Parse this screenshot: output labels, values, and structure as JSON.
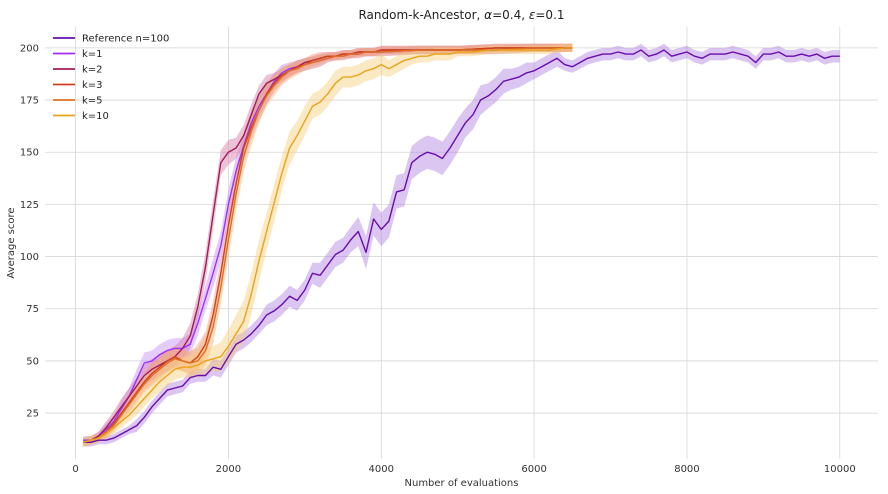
{
  "chart_data": {
    "type": "line",
    "title_parts": [
      "Random-k-Ancestor, ",
      "α",
      "=0.4, ",
      "ε",
      "=0.1"
    ],
    "xlabel": "Number of evaluations",
    "ylabel": "Average score",
    "xlim": [
      -400,
      10500
    ],
    "ylim": [
      3,
      210
    ],
    "xticks": [
      0,
      2000,
      4000,
      6000,
      8000,
      10000
    ],
    "yticks": [
      25,
      50,
      75,
      100,
      125,
      150,
      175,
      200
    ],
    "grid": true,
    "legend_position": "top-left",
    "series": [
      {
        "name": "Reference n=100",
        "color": "#6a0dad",
        "band_color": "#b07fe0",
        "x": [
          100,
          200,
          300,
          400,
          500,
          600,
          700,
          800,
          900,
          1000,
          1100,
          1200,
          1300,
          1400,
          1500,
          1600,
          1700,
          1800,
          1900,
          2000,
          2100,
          2200,
          2300,
          2400,
          2500,
          2600,
          2700,
          2800,
          2900,
          3000,
          3100,
          3200,
          3300,
          3400,
          3500,
          3600,
          3700,
          3800,
          3900,
          4000,
          4100,
          4200,
          4300,
          4400,
          4500,
          4600,
          4700,
          4800,
          4900,
          5000,
          5100,
          5200,
          5300,
          5400,
          5500,
          5600,
          5700,
          5800,
          5900,
          6000,
          6100,
          6200,
          6300,
          6400,
          6500,
          6600,
          6700,
          6800,
          6900,
          7000,
          7100,
          7200,
          7300,
          7400,
          7500,
          7600,
          7700,
          7800,
          7900,
          8000,
          8100,
          8200,
          8300,
          8400,
          8500,
          8600,
          8700,
          8800,
          8900,
          9000,
          9100,
          9200,
          9300,
          9400,
          9500,
          9600,
          9700,
          9800,
          9900,
          10000
        ],
        "y": [
          11,
          11,
          12,
          12,
          13,
          15,
          17,
          19,
          23,
          28,
          32,
          36,
          37,
          38,
          42,
          43,
          43,
          47,
          46,
          52,
          58,
          60,
          63,
          67,
          72,
          74,
          77,
          81,
          79,
          84,
          92,
          91,
          96,
          101,
          103,
          108,
          112,
          102,
          118,
          113,
          117,
          131,
          132,
          145,
          148,
          150,
          149,
          147,
          152,
          158,
          164,
          168,
          175,
          177,
          180,
          184,
          185,
          186,
          188,
          189,
          191,
          193,
          195,
          192,
          191,
          193,
          195,
          196,
          197,
          197,
          198,
          197,
          197,
          199,
          196,
          197,
          199,
          196,
          197,
          198,
          196,
          195,
          197,
          197,
          197,
          198,
          197,
          196,
          193,
          197,
          197,
          198,
          196,
          196,
          197,
          196,
          197,
          195,
          196,
          196
        ],
        "band": [
          2,
          2,
          2,
          2,
          2,
          2,
          2,
          3,
          3,
          3,
          3,
          3,
          3,
          3,
          3,
          3,
          3,
          4,
          4,
          4,
          4,
          4,
          4,
          4,
          5,
          5,
          5,
          5,
          5,
          5,
          5,
          6,
          6,
          6,
          6,
          6,
          7,
          8,
          8,
          8,
          8,
          8,
          8,
          8,
          8,
          8,
          8,
          8,
          8,
          8,
          7,
          7,
          7,
          6,
          6,
          6,
          5,
          5,
          5,
          4,
          4,
          4,
          4,
          3,
          3,
          3,
          3,
          3,
          3,
          3,
          3,
          3,
          3,
          3,
          3,
          3,
          3,
          3,
          3,
          3,
          3,
          3,
          3,
          3,
          3,
          3,
          3,
          3,
          3,
          3,
          3,
          3,
          3,
          3,
          3,
          3,
          3,
          3,
          3,
          3
        ]
      },
      {
        "name": "k=1",
        "color": "#9b30ff",
        "band_color": "#c58fff",
        "x": [
          100,
          200,
          300,
          400,
          500,
          600,
          700,
          800,
          900,
          1000,
          1100,
          1200,
          1300,
          1400,
          1500,
          1600,
          1700,
          1800,
          1900,
          2000,
          2100,
          2200,
          2300,
          2400,
          2500,
          2600,
          2700,
          2800,
          2900,
          3000,
          3100,
          3200,
          3300,
          3400,
          3500,
          3600,
          3700,
          3800,
          3900,
          4000,
          4500,
          5000,
          5500,
          6000,
          6500
        ],
        "y": [
          12,
          12,
          14,
          17,
          21,
          27,
          33,
          41,
          49,
          50,
          53,
          55,
          56,
          56,
          58,
          68,
          80,
          92,
          105,
          125,
          141,
          153,
          164,
          172,
          178,
          184,
          188,
          190,
          191,
          192,
          193,
          194,
          195,
          196,
          196,
          197,
          197,
          198,
          198,
          198,
          199,
          199,
          199,
          200,
          200
        ],
        "band": [
          2,
          2,
          2,
          3,
          3,
          4,
          4,
          5,
          5,
          5,
          5,
          5,
          5,
          5,
          5,
          6,
          6,
          7,
          7,
          7,
          7,
          6,
          6,
          5,
          5,
          4,
          4,
          3,
          3,
          3,
          3,
          3,
          2,
          2,
          2,
          2,
          2,
          2,
          2,
          2,
          2,
          2,
          2,
          2,
          2
        ]
      },
      {
        "name": "k=2",
        "color": "#a21c5a",
        "band_color": "#d47aa3",
        "x": [
          100,
          200,
          300,
          400,
          500,
          600,
          700,
          800,
          900,
          1000,
          1100,
          1200,
          1300,
          1400,
          1500,
          1600,
          1700,
          1800,
          1900,
          2000,
          2100,
          2200,
          2300,
          2400,
          2500,
          2600,
          2700,
          2800,
          2900,
          3000,
          3100,
          3200,
          3300,
          3400,
          3500,
          3600,
          3700,
          3800,
          3900,
          4000,
          4500,
          5000,
          5500,
          6000,
          6500
        ],
        "y": [
          11,
          12,
          14,
          18,
          23,
          28,
          33,
          38,
          43,
          46,
          48,
          50,
          52,
          56,
          62,
          76,
          95,
          120,
          145,
          150,
          152,
          158,
          168,
          178,
          183,
          185,
          187,
          189,
          191,
          193,
          194,
          195,
          196,
          196,
          197,
          197,
          198,
          198,
          198,
          199,
          199,
          199,
          200,
          200,
          200
        ],
        "band": [
          2,
          2,
          2,
          3,
          3,
          4,
          4,
          4,
          5,
          5,
          5,
          5,
          5,
          5,
          6,
          6,
          7,
          7,
          6,
          6,
          5,
          5,
          5,
          4,
          4,
          3,
          3,
          3,
          3,
          2,
          2,
          2,
          2,
          2,
          2,
          2,
          2,
          2,
          2,
          2,
          2,
          2,
          2,
          2,
          2
        ]
      },
      {
        "name": "k=3",
        "color": "#d0401c",
        "band_color": "#f09a7e",
        "x": [
          100,
          200,
          300,
          400,
          500,
          600,
          700,
          800,
          900,
          1000,
          1100,
          1200,
          1300,
          1400,
          1500,
          1600,
          1700,
          1800,
          1900,
          2000,
          2100,
          2200,
          2300,
          2400,
          2500,
          2600,
          2700,
          2800,
          2900,
          3000,
          3100,
          3200,
          3300,
          3400,
          3500,
          3600,
          3700,
          3800,
          3900,
          4000,
          4500,
          5000,
          5500,
          6000,
          6500
        ],
        "y": [
          11,
          12,
          13,
          16,
          20,
          25,
          30,
          35,
          40,
          44,
          47,
          50,
          52,
          50,
          49,
          52,
          58,
          72,
          92,
          115,
          135,
          152,
          162,
          170,
          178,
          183,
          187,
          189,
          191,
          192,
          194,
          195,
          196,
          196,
          197,
          197,
          198,
          198,
          198,
          199,
          199,
          199,
          200,
          200,
          200
        ],
        "band": [
          2,
          2,
          2,
          3,
          3,
          3,
          4,
          4,
          4,
          5,
          5,
          5,
          5,
          5,
          5,
          6,
          6,
          7,
          7,
          7,
          7,
          6,
          6,
          5,
          5,
          4,
          4,
          3,
          3,
          3,
          3,
          3,
          2,
          2,
          2,
          2,
          2,
          2,
          2,
          2,
          2,
          2,
          2,
          2,
          2
        ]
      },
      {
        "name": "k=5",
        "color": "#e07020",
        "band_color": "#f4b07a",
        "x": [
          100,
          200,
          300,
          400,
          500,
          600,
          700,
          800,
          900,
          1000,
          1100,
          1200,
          1300,
          1400,
          1500,
          1600,
          1700,
          1800,
          1900,
          2000,
          2100,
          2200,
          2300,
          2400,
          2500,
          2600,
          2700,
          2800,
          2900,
          3000,
          3100,
          3200,
          3300,
          3400,
          3500,
          3600,
          3700,
          3800,
          3900,
          4000,
          4500,
          5000,
          5500,
          6000,
          6500
        ],
        "y": [
          11,
          12,
          13,
          16,
          19,
          24,
          29,
          34,
          39,
          43,
          46,
          49,
          51,
          50,
          49,
          50,
          55,
          66,
          85,
          108,
          130,
          148,
          160,
          170,
          177,
          182,
          186,
          189,
          190,
          192,
          193,
          194,
          195,
          196,
          196,
          197,
          197,
          198,
          198,
          198,
          199,
          199,
          199,
          200,
          200
        ],
        "band": [
          2,
          2,
          2,
          3,
          3,
          3,
          4,
          4,
          4,
          5,
          5,
          5,
          5,
          5,
          6,
          6,
          7,
          8,
          8,
          8,
          8,
          7,
          7,
          6,
          5,
          5,
          4,
          4,
          3,
          3,
          3,
          3,
          2,
          2,
          2,
          2,
          2,
          2,
          2,
          2,
          2,
          2,
          2,
          2,
          2
        ]
      },
      {
        "name": "k=10",
        "color": "#eaa21a",
        "band_color": "#f7cf7a",
        "x": [
          100,
          200,
          300,
          400,
          500,
          600,
          700,
          800,
          900,
          1000,
          1100,
          1200,
          1300,
          1400,
          1500,
          1600,
          1700,
          1800,
          1900,
          2000,
          2100,
          2200,
          2300,
          2400,
          2500,
          2600,
          2700,
          2800,
          2900,
          3000,
          3100,
          3200,
          3300,
          3400,
          3500,
          3600,
          3700,
          3800,
          3900,
          4000,
          4100,
          4200,
          4300,
          4400,
          4500,
          4600,
          4700,
          4800,
          4900,
          5000,
          5200,
          5400,
          5600,
          5800,
          6000,
          6200,
          6400,
          6500
        ],
        "y": [
          11,
          12,
          13,
          15,
          18,
          21,
          24,
          28,
          32,
          36,
          40,
          43,
          46,
          47,
          47,
          48,
          50,
          51,
          52,
          57,
          63,
          69,
          82,
          98,
          112,
          126,
          140,
          152,
          158,
          165,
          172,
          174,
          178,
          183,
          186,
          186,
          187,
          189,
          190,
          192,
          190,
          192,
          194,
          195,
          196,
          196,
          197,
          197,
          197,
          198,
          198,
          199,
          199,
          199,
          199,
          199,
          200,
          200
        ],
        "band": [
          2,
          2,
          2,
          2,
          3,
          3,
          3,
          4,
          4,
          4,
          5,
          5,
          5,
          5,
          5,
          6,
          6,
          6,
          7,
          8,
          9,
          10,
          10,
          10,
          9,
          9,
          8,
          8,
          7,
          7,
          6,
          6,
          6,
          6,
          5,
          5,
          5,
          5,
          5,
          5,
          4,
          4,
          4,
          3,
          3,
          3,
          3,
          3,
          3,
          2,
          2,
          2,
          2,
          2,
          2,
          2,
          2,
          2
        ]
      }
    ]
  }
}
